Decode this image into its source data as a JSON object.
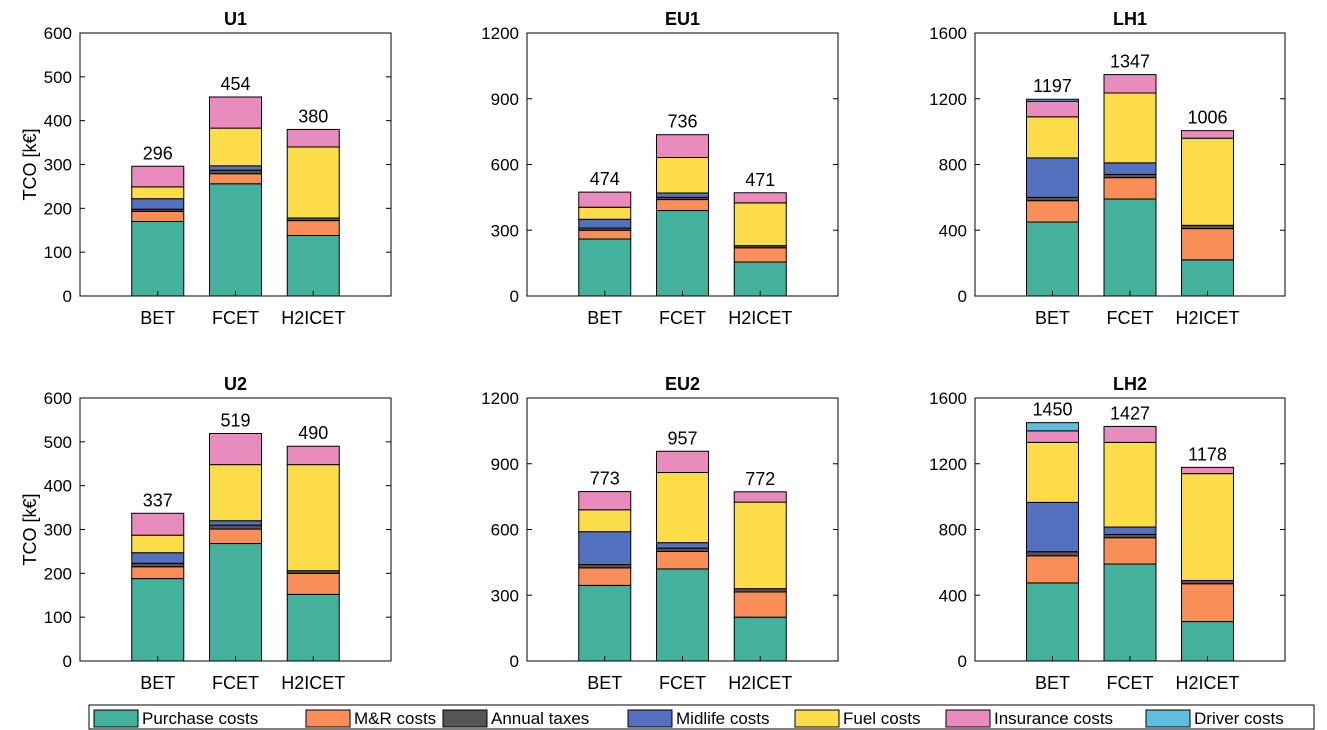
{
  "figure": {
    "ylabel": "TCO [k€]"
  },
  "legend": {
    "placement": "bottom",
    "items": [
      {
        "name": "Purchase costs",
        "color": "#43b19b"
      },
      {
        "name": "M&R costs",
        "color": "#f98e58"
      },
      {
        "name": "Annual taxes",
        "color": "#555555"
      },
      {
        "name": "Midlife costs",
        "color": "#5471bf"
      },
      {
        "name": "Fuel costs",
        "color": "#fddc4a"
      },
      {
        "name": "Insurance costs",
        "color": "#ea8bbd"
      },
      {
        "name": "Driver costs",
        "color": "#5dbedd"
      }
    ]
  },
  "chart_data": [
    {
      "type": "bar",
      "stacked": true,
      "title": "U1",
      "categories": [
        "BET",
        "FCET",
        "H2ICET"
      ],
      "ylim": [
        0,
        600
      ],
      "yticks": [
        0,
        100,
        200,
        300,
        400,
        500,
        600
      ],
      "totals": [
        "296",
        "454",
        "380"
      ],
      "series": [
        {
          "name": "Purchase costs",
          "values": [
            170,
            256,
            138
          ]
        },
        {
          "name": "M&R costs",
          "values": [
            23,
            23,
            34
          ]
        },
        {
          "name": "Annual taxes",
          "values": [
            5,
            8,
            6
          ]
        },
        {
          "name": "Midlife costs",
          "values": [
            24,
            10,
            0
          ]
        },
        {
          "name": "Fuel costs",
          "values": [
            27,
            86,
            162
          ]
        },
        {
          "name": "Insurance costs",
          "values": [
            47,
            71,
            40
          ]
        },
        {
          "name": "Driver costs",
          "values": [
            0,
            0,
            0
          ]
        }
      ]
    },
    {
      "type": "bar",
      "stacked": true,
      "title": "EU1",
      "categories": [
        "BET",
        "FCET",
        "H2ICET"
      ],
      "ylim": [
        0,
        1200
      ],
      "yticks": [
        0,
        300,
        600,
        900,
        1200
      ],
      "totals": [
        "474",
        "736",
        "471"
      ],
      "series": [
        {
          "name": "Purchase costs",
          "values": [
            260,
            390,
            155
          ]
        },
        {
          "name": "M&R costs",
          "values": [
            40,
            50,
            65
          ]
        },
        {
          "name": "Annual taxes",
          "values": [
            10,
            10,
            10
          ]
        },
        {
          "name": "Midlife costs",
          "values": [
            40,
            20,
            0
          ]
        },
        {
          "name": "Fuel costs",
          "values": [
            55,
            162,
            195
          ]
        },
        {
          "name": "Insurance costs",
          "values": [
            69,
            104,
            46
          ]
        },
        {
          "name": "Driver costs",
          "values": [
            0,
            0,
            0
          ]
        }
      ]
    },
    {
      "type": "bar",
      "stacked": true,
      "title": "LH1",
      "categories": [
        "BET",
        "FCET",
        "H2ICET"
      ],
      "ylim": [
        0,
        1600
      ],
      "yticks": [
        0,
        400,
        800,
        1200,
        1600
      ],
      "totals": [
        "1197",
        "1347",
        "1006"
      ],
      "series": [
        {
          "name": "Purchase costs",
          "values": [
            450,
            590,
            220
          ]
        },
        {
          "name": "M&R costs",
          "values": [
            130,
            130,
            190
          ]
        },
        {
          "name": "Annual taxes",
          "values": [
            20,
            20,
            20
          ]
        },
        {
          "name": "Midlife costs",
          "values": [
            240,
            70,
            0
          ]
        },
        {
          "name": "Fuel costs",
          "values": [
            250,
            425,
            530
          ]
        },
        {
          "name": "Insurance costs",
          "values": [
            95,
            112,
            46
          ]
        },
        {
          "name": "Driver costs",
          "values": [
            12,
            0,
            0
          ]
        }
      ]
    },
    {
      "type": "bar",
      "stacked": true,
      "title": "U2",
      "categories": [
        "BET",
        "FCET",
        "H2ICET"
      ],
      "ylim": [
        0,
        600
      ],
      "yticks": [
        0,
        100,
        200,
        300,
        400,
        500,
        600
      ],
      "totals": [
        "337",
        "519",
        "490"
      ],
      "series": [
        {
          "name": "Purchase costs",
          "values": [
            188,
            268,
            152
          ]
        },
        {
          "name": "M&R costs",
          "values": [
            27,
            33,
            48
          ]
        },
        {
          "name": "Annual taxes",
          "values": [
            8,
            9,
            6
          ]
        },
        {
          "name": "Midlife costs",
          "values": [
            24,
            10,
            0
          ]
        },
        {
          "name": "Fuel costs",
          "values": [
            40,
            128,
            242
          ]
        },
        {
          "name": "Insurance costs",
          "values": [
            50,
            71,
            42
          ]
        },
        {
          "name": "Driver costs",
          "values": [
            0,
            0,
            0
          ]
        }
      ]
    },
    {
      "type": "bar",
      "stacked": true,
      "title": "EU2",
      "categories": [
        "BET",
        "FCET",
        "H2ICET"
      ],
      "ylim": [
        0,
        1200
      ],
      "yticks": [
        0,
        300,
        600,
        900,
        1200
      ],
      "totals": [
        "773",
        "957",
        "772"
      ],
      "series": [
        {
          "name": "Purchase costs",
          "values": [
            345,
            420,
            200
          ]
        },
        {
          "name": "M&R costs",
          "values": [
            80,
            80,
            115
          ]
        },
        {
          "name": "Annual taxes",
          "values": [
            15,
            15,
            15
          ]
        },
        {
          "name": "Midlife costs",
          "values": [
            150,
            25,
            0
          ]
        },
        {
          "name": "Fuel costs",
          "values": [
            100,
            320,
            395
          ]
        },
        {
          "name": "Insurance costs",
          "values": [
            83,
            97,
            47
          ]
        },
        {
          "name": "Driver costs",
          "values": [
            0,
            0,
            0
          ]
        }
      ]
    },
    {
      "type": "bar",
      "stacked": true,
      "title": "LH2",
      "categories": [
        "BET",
        "FCET",
        "H2ICET"
      ],
      "ylim": [
        0,
        1600
      ],
      "yticks": [
        0,
        400,
        800,
        1200,
        1600
      ],
      "totals": [
        "1450",
        "1427",
        "1178"
      ],
      "series": [
        {
          "name": "Purchase costs",
          "values": [
            475,
            590,
            240
          ]
        },
        {
          "name": "M&R costs",
          "values": [
            165,
            160,
            230
          ]
        },
        {
          "name": "Annual taxes",
          "values": [
            25,
            20,
            20
          ]
        },
        {
          "name": "Midlife costs",
          "values": [
            300,
            45,
            0
          ]
        },
        {
          "name": "Fuel costs",
          "values": [
            365,
            515,
            650
          ]
        },
        {
          "name": "Insurance costs",
          "values": [
            70,
            97,
            38
          ]
        },
        {
          "name": "Driver costs",
          "values": [
            50,
            0,
            0
          ]
        }
      ]
    }
  ]
}
